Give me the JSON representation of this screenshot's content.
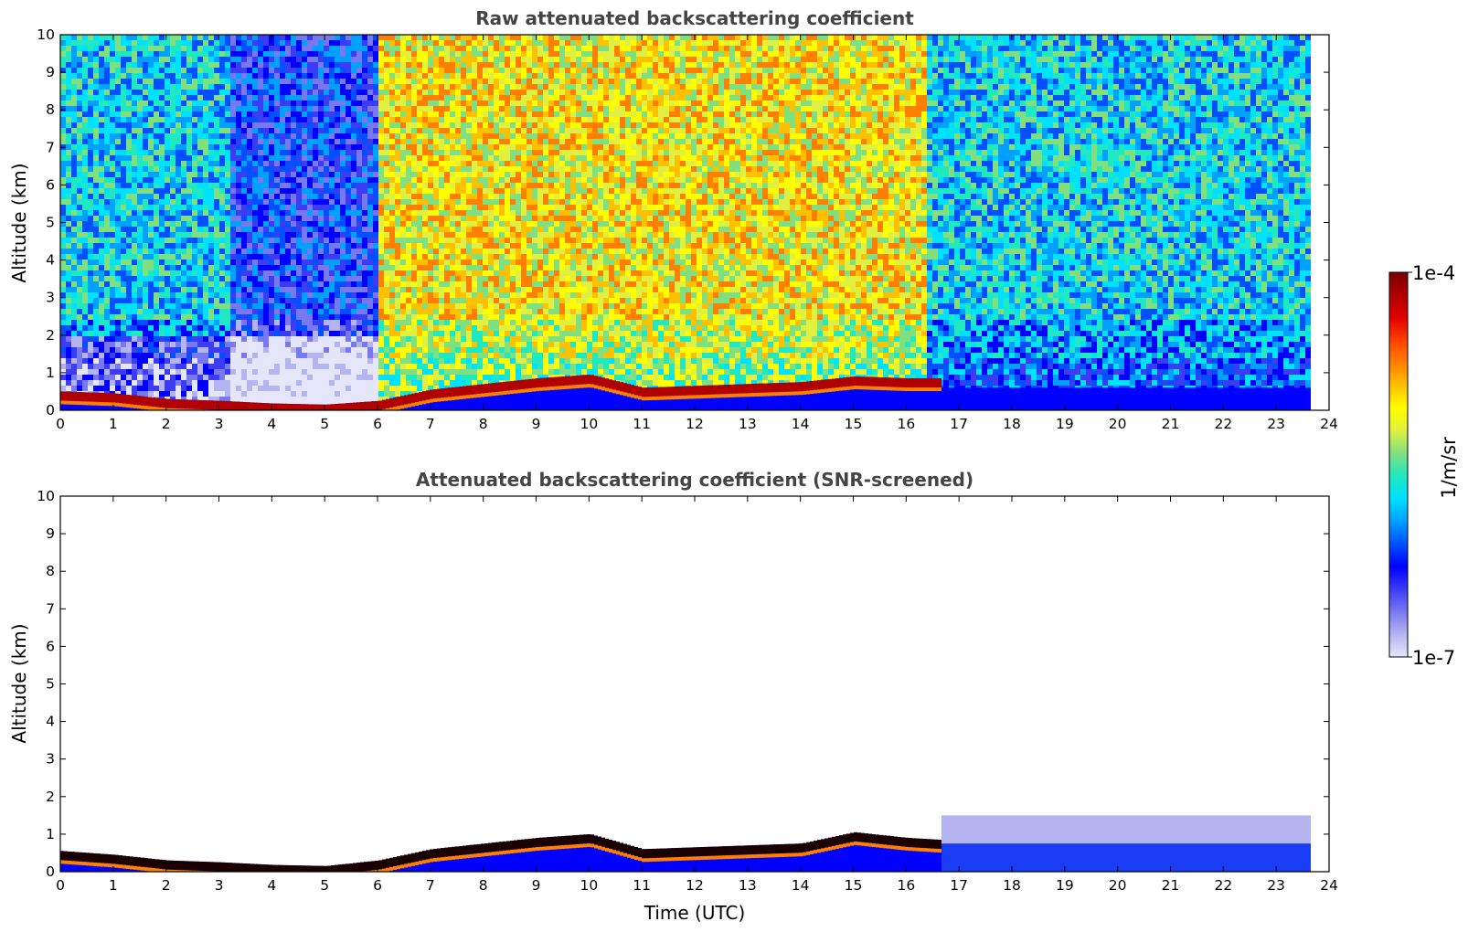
{
  "chart_data": [
    {
      "type": "heatmap",
      "title": "Raw attenuated backscattering coefficient",
      "xlabel": "",
      "ylabel": "Altitude (km)",
      "xlim": [
        0,
        24
      ],
      "ylim": [
        0,
        10
      ],
      "x_ticks": [
        "0",
        "1",
        "2",
        "3",
        "4",
        "5",
        "6",
        "7",
        "8",
        "9",
        "10",
        "11",
        "12",
        "13",
        "14",
        "15",
        "16",
        "17",
        "18",
        "19",
        "20",
        "21",
        "22",
        "23",
        "24"
      ],
      "y_ticks": [
        "0",
        "1",
        "2",
        "3",
        "4",
        "5",
        "6",
        "7",
        "8",
        "9",
        "10"
      ],
      "data_end_time": 23.65,
      "boundary_layer_top_km": [
        [
          0,
          0.5
        ],
        [
          1,
          0.45
        ],
        [
          2,
          0.3
        ],
        [
          3,
          0.25
        ],
        [
          4,
          0.18
        ],
        [
          5,
          0.15
        ],
        [
          6,
          0.25
        ],
        [
          7,
          0.55
        ],
        [
          8,
          0.7
        ],
        [
          9,
          0.85
        ],
        [
          10,
          0.95
        ],
        [
          11,
          0.6
        ],
        [
          12,
          0.65
        ],
        [
          13,
          0.7
        ],
        [
          14,
          0.75
        ],
        [
          15,
          0.9
        ],
        [
          16,
          0.85
        ],
        [
          16.6,
          0.85
        ]
      ],
      "noise_level_by_period": [
        {
          "t0": 0,
          "t1": 3.2,
          "level": "medium"
        },
        {
          "t0": 3.2,
          "t1": 5.95,
          "level": "low"
        },
        {
          "t0": 5.95,
          "t1": 16.3,
          "level": "high"
        },
        {
          "t0": 16.3,
          "t1": 23.65,
          "level": "medium"
        }
      ]
    },
    {
      "type": "heatmap",
      "title": "Attenuated backscattering coefficient (SNR-screened)",
      "xlabel": "Time (UTC)",
      "ylabel": "Altitude (km)",
      "xlim": [
        0,
        24
      ],
      "ylim": [
        0,
        10
      ],
      "x_ticks": [
        "0",
        "1",
        "2",
        "3",
        "4",
        "5",
        "6",
        "7",
        "8",
        "9",
        "10",
        "11",
        "12",
        "13",
        "14",
        "15",
        "16",
        "17",
        "18",
        "19",
        "20",
        "21",
        "22",
        "23",
        "24"
      ],
      "y_ticks": [
        "0",
        "1",
        "2",
        "3",
        "4",
        "5",
        "6",
        "7",
        "8",
        "9",
        "10"
      ],
      "data_end_time": 23.65,
      "boundary_layer_top_km": [
        [
          0,
          0.55
        ],
        [
          1,
          0.45
        ],
        [
          2,
          0.3
        ],
        [
          3,
          0.25
        ],
        [
          4,
          0.18
        ],
        [
          5,
          0.15
        ],
        [
          6,
          0.3
        ],
        [
          7,
          0.6
        ],
        [
          8,
          0.75
        ],
        [
          9,
          0.9
        ],
        [
          10,
          1.0
        ],
        [
          11,
          0.6
        ],
        [
          12,
          0.65
        ],
        [
          13,
          0.7
        ],
        [
          14,
          0.75
        ],
        [
          15,
          1.05
        ],
        [
          16,
          0.9
        ],
        [
          16.6,
          0.85
        ]
      ]
    }
  ],
  "colorbar": {
    "label": "1/m/sr",
    "max_label": "1e-4",
    "min_label": "1e-7",
    "scale": "log",
    "colormap": "jet",
    "colors": [
      "#e6e6fa",
      "#b4b4f0",
      "#7878f0",
      "#3c3cf5",
      "#0000ff",
      "#0050ff",
      "#00a0ff",
      "#00e0ff",
      "#20e8c0",
      "#80e080",
      "#e0f040",
      "#ffff00",
      "#ffc000",
      "#ff8000",
      "#ff4000",
      "#e00000",
      "#b00000",
      "#7a0000"
    ]
  }
}
